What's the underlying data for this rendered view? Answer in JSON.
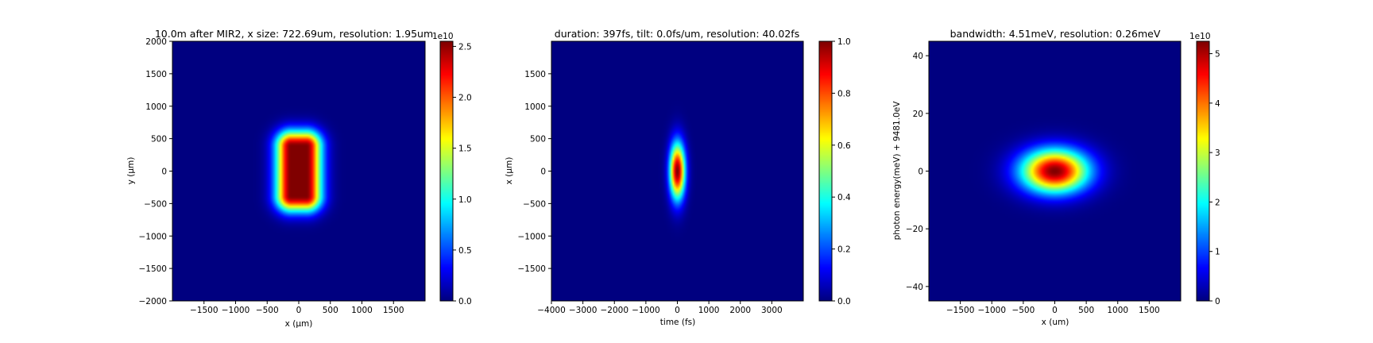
{
  "figure": {
    "background": "#ffffff"
  },
  "chart_data": [
    {
      "type": "heatmap",
      "title": "10.0m after MIR2, x size: 722.69um, resolution: 1.95um",
      "xlabel": "x (μm)",
      "ylabel": "y (μm)",
      "xlim": [
        -2000,
        2000
      ],
      "ylim": [
        -2000,
        2000
      ],
      "xticks": [
        -1500,
        -1000,
        -500,
        0,
        500,
        1000,
        1500
      ],
      "yticks": [
        -2000,
        -1500,
        -1000,
        -500,
        0,
        500,
        1000,
        1500,
        2000
      ],
      "colorbar": {
        "colormap": "jet",
        "min": 0,
        "max": 2.55,
        "ticks": [
          0.0,
          0.5,
          1.0,
          1.5,
          2.0,
          2.5
        ],
        "tick_labels": [
          "0.0",
          "0.5",
          "1.0",
          "1.5",
          "2.0",
          "2.5"
        ],
        "offset_label": "1e10"
      },
      "field": {
        "shape": "flat-top",
        "center_x": 0,
        "center_y": 0,
        "half_width_x": 120,
        "half_width_y": 380,
        "edge_sigma": 170,
        "peak": 1.0
      }
    },
    {
      "type": "heatmap",
      "title": "duration: 397fs, tilt: 0.0fs/um, resolution: 40.02fs",
      "xlabel": "time (fs)",
      "ylabel": "x (μm)",
      "xlim": [
        -4000,
        4000
      ],
      "ylim": [
        -2000,
        2000
      ],
      "xticks": [
        -4000,
        -3000,
        -2000,
        -1000,
        0,
        1000,
        2000,
        3000
      ],
      "yticks": [
        -1500,
        -1000,
        -500,
        0,
        500,
        1000,
        1500
      ],
      "colorbar": {
        "colormap": "jet",
        "min": 0,
        "max": 1.0,
        "ticks": [
          0.0,
          0.2,
          0.4,
          0.6,
          0.8,
          1.0
        ],
        "tick_labels": [
          "0.0",
          "0.2",
          "0.4",
          "0.6",
          "0.8",
          "1.0"
        ],
        "offset_label": ""
      },
      "field": {
        "shape": "gaussian",
        "center_x": 0,
        "center_y": 0,
        "sigma_x": 170,
        "sigma_y": 300,
        "peak": 1.0
      }
    },
    {
      "type": "heatmap",
      "title": "bandwidth: 4.51meV, resolution: 0.26meV",
      "xlabel": "x (um)",
      "ylabel": "photon energy(meV) + 9481.0eV",
      "xlim": [
        -2000,
        2000
      ],
      "ylim": [
        -45,
        45
      ],
      "xticks": [
        -1500,
        -1000,
        -500,
        0,
        500,
        1000,
        1500
      ],
      "yticks": [
        -40,
        -20,
        0,
        20,
        40
      ],
      "colorbar": {
        "colormap": "jet",
        "min": 0,
        "max": 5.25,
        "ticks": [
          0,
          1,
          2,
          3,
          4,
          5
        ],
        "tick_labels": [
          "0",
          "1",
          "2",
          "3",
          "4",
          "5"
        ],
        "offset_label": "1e10"
      },
      "field": {
        "shape": "gaussian",
        "center_x": 0,
        "center_y": 0,
        "sigma_x": 370,
        "sigma_y": 5.2,
        "peak": 1.0
      }
    }
  ]
}
